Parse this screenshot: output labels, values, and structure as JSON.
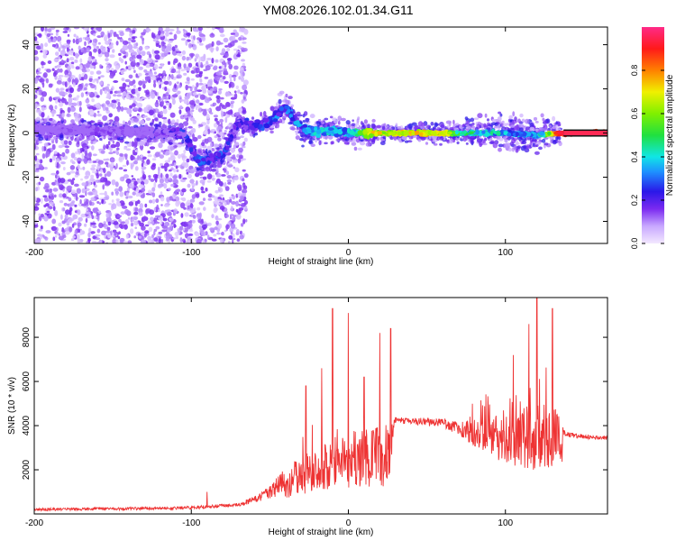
{
  "title": "YM08.2026.102.01.34.G11",
  "chart_data": [
    {
      "type": "heatmap",
      "xlabel": "Height of straight line (km)",
      "ylabel": "Frequency (Hz)",
      "xlim": [
        -200,
        165
      ],
      "ylim": [
        -50,
        48
      ],
      "xticks": [
        -200,
        -100,
        0,
        100
      ],
      "yticks": [
        -40,
        -20,
        0,
        20,
        40
      ],
      "colorbar": {
        "label": "Normalized spectral amplitude",
        "range": [
          0,
          1
        ],
        "ticks": [
          "0.0",
          "0.2",
          "0.4",
          "0.6",
          "0.8"
        ]
      },
      "ridge": [
        {
          "x": -200,
          "f": 2,
          "amp": 0.15
        },
        {
          "x": -160,
          "f": 1,
          "amp": 0.16
        },
        {
          "x": -120,
          "f": 0,
          "amp": 0.18
        },
        {
          "x": -105,
          "f": 0,
          "amp": 0.3
        },
        {
          "x": -95,
          "f": -13,
          "amp": 0.35
        },
        {
          "x": -80,
          "f": -10,
          "amp": 0.3
        },
        {
          "x": -70,
          "f": 5,
          "amp": 0.25
        },
        {
          "x": -60,
          "f": 3,
          "amp": 0.3
        },
        {
          "x": -50,
          "f": 5,
          "amp": 0.35
        },
        {
          "x": -40,
          "f": 12,
          "amp": 0.35
        },
        {
          "x": -30,
          "f": 2,
          "amp": 0.4
        },
        {
          "x": -20,
          "f": 1,
          "amp": 0.45
        },
        {
          "x": -10,
          "f": 1,
          "amp": 0.45
        },
        {
          "x": 0,
          "f": 0,
          "amp": 0.45
        },
        {
          "x": 15,
          "f": 0,
          "amp": 0.75
        },
        {
          "x": 60,
          "f": 0,
          "amp": 0.8
        },
        {
          "x": 70,
          "f": 0,
          "amp": 0.55
        },
        {
          "x": 100,
          "f": 0,
          "amp": 0.45
        },
        {
          "x": 120,
          "f": -1,
          "amp": 0.4
        },
        {
          "x": 135,
          "f": 0,
          "amp": 1.0
        },
        {
          "x": 165,
          "f": 0,
          "amp": 1.0
        }
      ],
      "noise_cutoff_x": -65
    },
    {
      "type": "line",
      "xlabel": "Height of straight line (km)",
      "ylabel": "SNR (10 * v/v)",
      "xlim": [
        -200,
        165
      ],
      "ylim": [
        0,
        9800
      ],
      "xticks": [
        -200,
        -100,
        0,
        100
      ],
      "yticks": [
        2000,
        4000,
        6000,
        8000
      ],
      "color": "#ee3333",
      "series": [
        {
          "x": [
            -200,
            -150,
            -100,
            -70,
            -60,
            -50,
            -40,
            -30,
            -20,
            -10,
            0,
            10,
            20,
            28,
            29,
            40,
            60,
            70,
            80,
            90,
            100,
            110,
            120,
            130,
            136,
            137,
            140,
            150,
            165
          ],
          "y": [
            200,
            230,
            280,
            420,
            650,
            1000,
            1400,
            1800,
            2000,
            2200,
            2400,
            2500,
            2600,
            2700,
            4250,
            4200,
            4150,
            3850,
            3700,
            3500,
            3400,
            3300,
            3300,
            3400,
            3500,
            3700,
            3600,
            3500,
            3450
          ],
          "spread": [
            60,
            60,
            70,
            90,
            150,
            300,
            700,
            900,
            1000,
            1100,
            1200,
            1300,
            1400,
            1400,
            150,
            150,
            200,
            350,
            600,
            900,
            1100,
            1300,
            1400,
            1400,
            1300,
            120,
            110,
            100,
            90
          ],
          "peaks": [
            {
              "x": -90,
              "y": 1000
            },
            {
              "x": -27,
              "y": 5800
            },
            {
              "x": -17,
              "y": 6600
            },
            {
              "x": -10,
              "y": 9300
            },
            {
              "x": 0,
              "y": 9100
            },
            {
              "x": 10,
              "y": 6200
            },
            {
              "x": 20,
              "y": 8200
            },
            {
              "x": 27,
              "y": 8400
            },
            {
              "x": 105,
              "y": 7200
            },
            {
              "x": 115,
              "y": 8600
            },
            {
              "x": 120,
              "y": 9800
            },
            {
              "x": 130,
              "y": 9300
            }
          ]
        }
      ]
    }
  ]
}
